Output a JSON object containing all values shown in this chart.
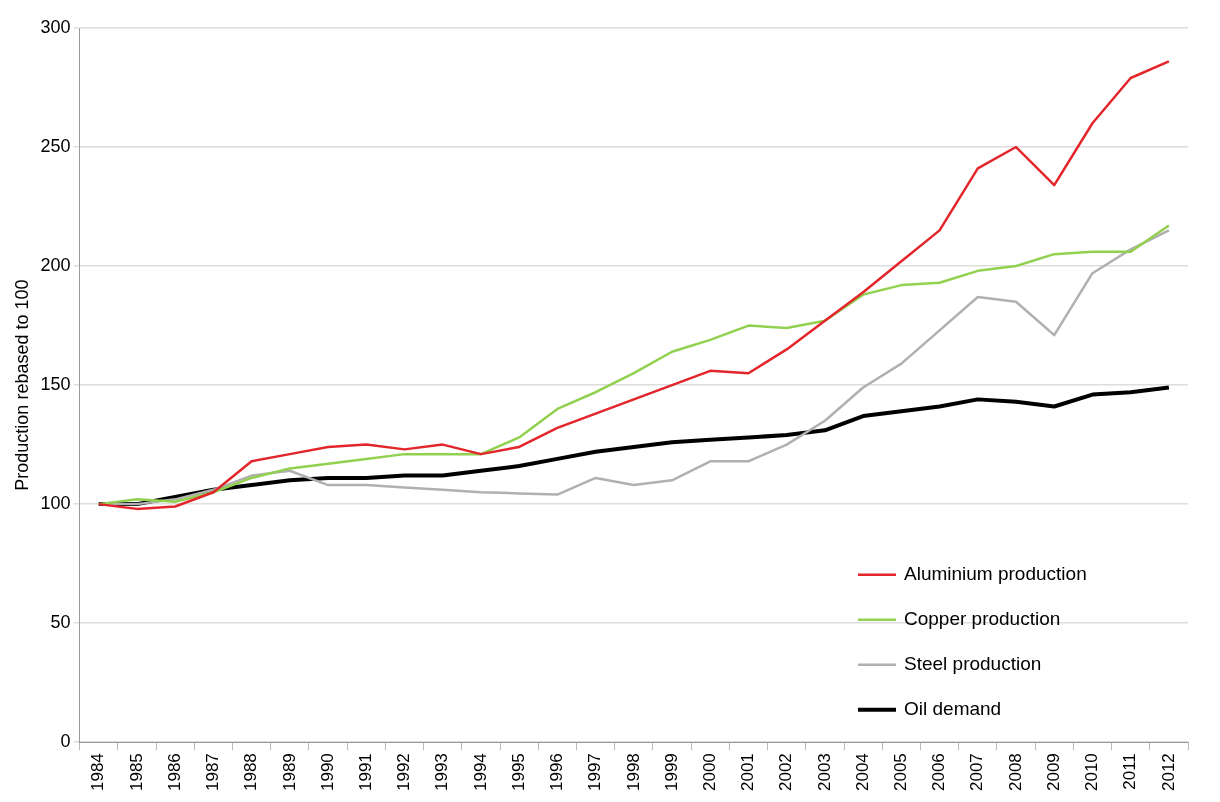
{
  "chart_data": {
    "type": "line",
    "ylabel": "Production rebased to 100",
    "categories": [
      "1984",
      "1985",
      "1986",
      "1987",
      "1988",
      "1989",
      "1990",
      "1991",
      "1992",
      "1993",
      "1994",
      "1995",
      "1996",
      "1997",
      "1998",
      "1999",
      "2000",
      "2001",
      "2002",
      "2003",
      "2004",
      "2005",
      "2006",
      "2007",
      "2008",
      "2009",
      "2010",
      "2011",
      "2012"
    ],
    "series": [
      {
        "name": "Aluminium production",
        "color": "#e3262b",
        "values": [
          100,
          98,
          99,
          105,
          118,
          121,
          124,
          125,
          123,
          125,
          121,
          124,
          132,
          138,
          144,
          150,
          156,
          155,
          165,
          177,
          189,
          202,
          215,
          241,
          250,
          234,
          260,
          279,
          286
        ]
      },
      {
        "name": "Copper production",
        "color": "#92d050",
        "values": [
          100,
          102,
          101,
          105,
          111,
          115,
          117,
          119,
          121,
          121,
          121,
          128,
          140,
          147,
          155,
          164,
          169,
          175,
          174,
          177,
          188,
          192,
          193,
          198,
          200,
          205,
          206,
          206,
          217
        ]
      },
      {
        "name": "Steel production",
        "color": "#b0b0b0",
        "values": [
          100,
          100,
          102,
          106,
          112,
          114,
          108,
          108,
          107,
          106,
          105,
          104.5,
          104,
          111,
          108,
          110,
          118,
          118,
          125,
          135,
          149,
          159,
          173,
          187,
          185,
          171,
          197,
          207,
          215
        ]
      },
      {
        "name": "Oil demand",
        "color": "#000000",
        "values": [
          100,
          100,
          103,
          106,
          108,
          110,
          111,
          111,
          112,
          112,
          114,
          116,
          119,
          122,
          124,
          126,
          127,
          128,
          129,
          131,
          137,
          139,
          141,
          144,
          143,
          141,
          146,
          147,
          149
        ]
      }
    ],
    "ylim": [
      0,
      300
    ],
    "yticks": [
      0,
      50,
      100,
      150,
      200,
      250,
      300
    ],
    "grid": "y",
    "legend": "bottom right",
    "marker": "none",
    "line_style": "solid"
  }
}
